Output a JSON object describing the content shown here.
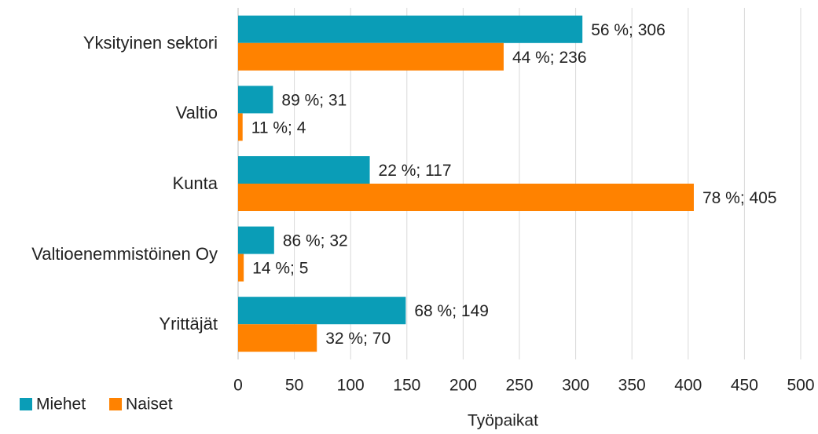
{
  "chart_data": {
    "type": "bar",
    "orientation": "horizontal",
    "categories": [
      "Yksityinen sektori",
      "Valtio",
      "Kunta",
      "Valtioenemmistöinen Oy",
      "Yrittäjät"
    ],
    "series": [
      {
        "name": "Miehet",
        "color": "#0a9db7",
        "values": [
          306,
          31,
          117,
          32,
          149
        ],
        "value_labels": [
          "56 %; 306",
          "89 %; 31",
          "22 %; 117",
          "86 %; 32",
          "68 %; 149"
        ]
      },
      {
        "name": "Naiset",
        "color": "#ff8200",
        "values": [
          236,
          4,
          405,
          5,
          70
        ],
        "value_labels": [
          "44 %; 236",
          "11 %; 4",
          "78 %; 405",
          "14 %; 5",
          "32 %; 70"
        ]
      }
    ],
    "xlabel": "Työpaikat",
    "xlim": [
      0,
      500
    ],
    "xticks": [
      0,
      50,
      100,
      150,
      200,
      250,
      300,
      350,
      400,
      450,
      500
    ],
    "grid": true,
    "legend": "bottom-left"
  }
}
